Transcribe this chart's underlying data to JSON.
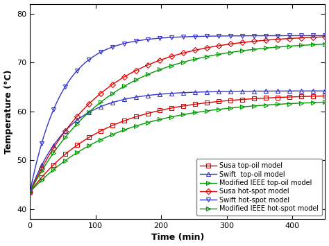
{
  "xlabel": "Time (min)",
  "ylabel": "Temperature (°C)",
  "xlim": [
    0,
    450
  ],
  "ylim": [
    38,
    82
  ],
  "yticks": [
    40,
    50,
    60,
    70,
    80
  ],
  "xticks": [
    0,
    100,
    200,
    300,
    400
  ],
  "background_color": "#ffffff",
  "curves": [
    {
      "key": "susa_top_oil",
      "label": "Susa top-oil model",
      "color": "#dd0000",
      "marker": "s",
      "T0": 43.5,
      "Tinf": 63.5,
      "tau": 110
    },
    {
      "key": "swift_top_oil",
      "label": "Swift  top-oil model",
      "color": "#3333cc",
      "marker": "^",
      "T0": 43.5,
      "Tinf": 64.2,
      "tau": 58
    },
    {
      "key": "ieee_top_oil",
      "label": "Modified IEEE top-oil model",
      "color": "#009900",
      "marker": ">",
      "T0": 43.5,
      "Tinf": 62.5,
      "tau": 130
    },
    {
      "key": "susa_hot_spot",
      "label": "Susa hot-spot model",
      "color": "#dd0000",
      "marker": "D",
      "T0": 43.5,
      "Tinf": 75.8,
      "tau": 110
    },
    {
      "key": "swift_hot_spot",
      "label": "Swift hot-spot model",
      "color": "#3333cc",
      "marker": "v",
      "T0": 43.5,
      "Tinf": 75.5,
      "tau": 48
    },
    {
      "key": "ieee_hot_spot",
      "label": "Modified IEEE hot-spot model",
      "color": "#009900",
      "marker": ">",
      "T0": 43.5,
      "Tinf": 74.5,
      "tau": 120
    }
  ],
  "legend_loc": "lower right",
  "marker_every": 18,
  "linewidth": 1.0,
  "markersize": 4.5,
  "markeredgewidth": 0.8,
  "tick_labelsize": 8,
  "axis_labelsize": 9
}
